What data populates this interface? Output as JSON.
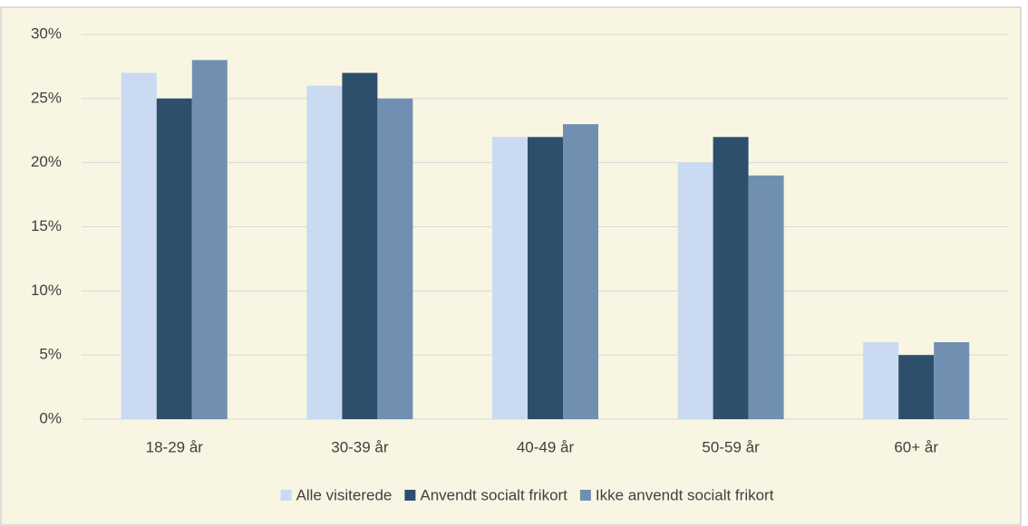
{
  "chart_data": {
    "type": "bar",
    "categories": [
      "18-29 år",
      "30-39 år",
      "40-49 år",
      "50-59 år",
      "60+ år"
    ],
    "series": [
      {
        "name": "Alle visiterede",
        "color": "#c9daf1",
        "values": [
          27,
          26,
          22,
          20,
          6
        ]
      },
      {
        "name": "Anvendt socialt frikort",
        "color": "#2e4f6c",
        "values": [
          25,
          27,
          22,
          22,
          5
        ]
      },
      {
        "name": "Ikke anvendt socialt frikort",
        "color": "#7190b1",
        "values": [
          28,
          25,
          23,
          19,
          6
        ]
      }
    ],
    "ylim": [
      0,
      30
    ],
    "yticks": [
      {
        "value": 0,
        "label": "0%"
      },
      {
        "value": 5,
        "label": "5%"
      },
      {
        "value": 10,
        "label": "10%"
      },
      {
        "value": 15,
        "label": "15%"
      },
      {
        "value": 20,
        "label": "20%"
      },
      {
        "value": 25,
        "label": "25%"
      },
      {
        "value": 30,
        "label": "30%"
      }
    ],
    "grid": true,
    "legend": "bottom"
  }
}
